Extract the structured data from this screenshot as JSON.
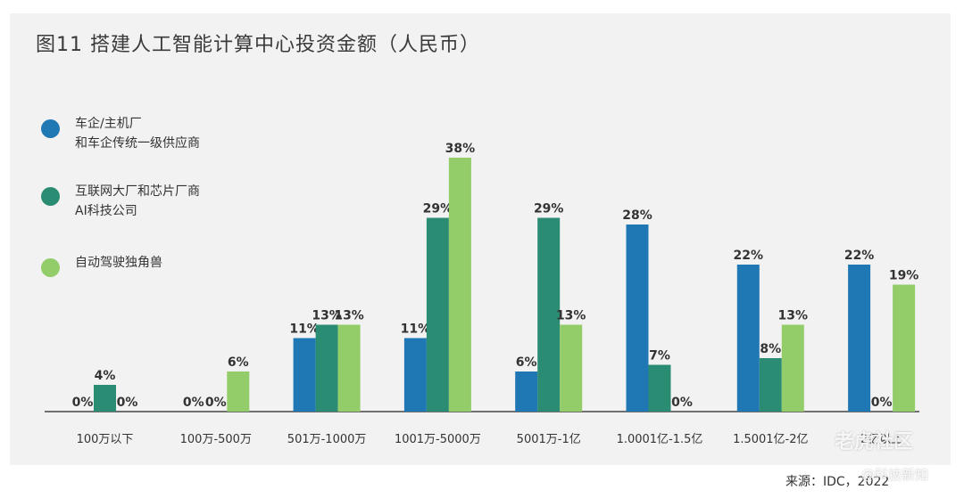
{
  "chart_data": {
    "type": "bar",
    "title": "图11 搭建人工智能计算中心投资金额（人民币）",
    "categories": [
      "100万以下",
      "100万-500万",
      "501万-1000万",
      "1001万-5000万",
      "5001万-1亿",
      "1.0001亿-1.5亿",
      "1.5001亿-2亿",
      "2亿以上"
    ],
    "series": [
      {
        "name_lines": [
          "车企/主机厂",
          "和车企传统一级供应商"
        ],
        "color": "#1f78b4",
        "values": [
          0,
          0,
          11,
          11,
          6,
          28,
          22,
          22
        ]
      },
      {
        "name_lines": [
          "互联网大厂和芯片厂商",
          "AI科技公司"
        ],
        "color": "#2a8c72",
        "values": [
          4,
          0,
          13,
          29,
          29,
          7,
          8,
          0
        ]
      },
      {
        "name_lines": [
          "自动驾驶独角兽"
        ],
        "color": "#93cd6a",
        "values": [
          0,
          6,
          13,
          38,
          13,
          0,
          13,
          19
        ]
      }
    ],
    "value_suffix": "%",
    "ylim": [
      0,
      38
    ],
    "legend_position": "left",
    "grid": false
  },
  "source": "来源：IDC，2022",
  "watermark": "老虎社区",
  "watermark2": "@科技新知"
}
